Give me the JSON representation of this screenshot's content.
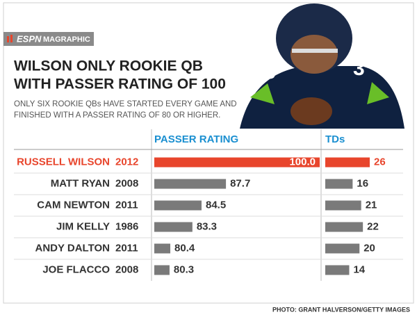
{
  "header": {
    "brand": "ESPN",
    "sub_brand": "MAGRAPHIC",
    "title_lines": [
      "WILSON ONLY ROOKIE QB",
      "WITH PASSER RATING OF 100"
    ],
    "subtitle_lines": [
      "ONLY SIX ROOKIE QBs HAVE STARTED EVERY GAME AND",
      "FINISHED WITH A PASSER RATING OF 80 OR HIGHER."
    ]
  },
  "credit": "PHOTO: GRANT HALVERSON/GETTY IMAGES",
  "chart_data": {
    "type": "bar",
    "orientation": "horizontal",
    "categories": [
      "RUSSELL WILSON",
      "MATT RYAN",
      "CAM NEWTON",
      "JIM KELLY",
      "ANDY DALTON",
      "JOE FLACCO"
    ],
    "years": [
      "2012",
      "2008",
      "2011",
      "1986",
      "2011",
      "2008"
    ],
    "category_colors": [
      "#e8452c",
      "#333333",
      "#333333",
      "#333333",
      "#333333",
      "#333333"
    ],
    "series": [
      {
        "name": "PASSER RATING",
        "values": [
          100.0,
          87.7,
          84.5,
          83.3,
          80.4,
          80.3
        ],
        "value_labels": [
          "100.0",
          "87.7",
          "84.5",
          "83.3",
          "80.4",
          "80.3"
        ],
        "colors": [
          "#e8452c",
          "#7a7a7a",
          "#7a7a7a",
          "#7a7a7a",
          "#7a7a7a",
          "#7a7a7a"
        ],
        "label_colors": [
          "#ffffff",
          "#333333",
          "#333333",
          "#333333",
          "#333333",
          "#333333"
        ],
        "xlim": [
          78.3,
          100
        ]
      },
      {
        "name": "TDs",
        "values": [
          26,
          16,
          21,
          22,
          20,
          14
        ],
        "colors": [
          "#e8452c",
          "#7a7a7a",
          "#7a7a7a",
          "#7a7a7a",
          "#7a7a7a",
          "#7a7a7a"
        ],
        "label_colors": [
          "#e8452c",
          "#333333",
          "#333333",
          "#333333",
          "#333333",
          "#333333"
        ],
        "xlim": [
          0,
          26
        ]
      }
    ]
  }
}
